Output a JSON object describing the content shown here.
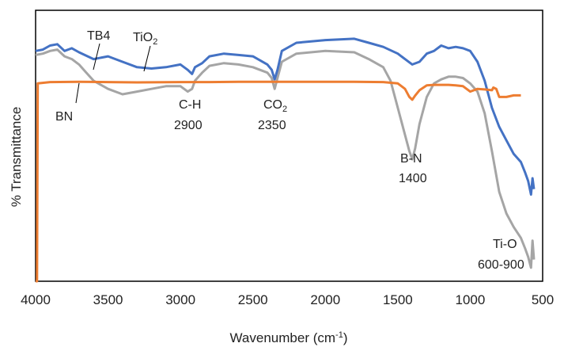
{
  "chart_data": {
    "type": "line",
    "title": "",
    "xlabel": "Wavenumber (cm",
    "xlabel_sup": "-1",
    "xlabel_close": ")",
    "ylabel": "% Transmittance",
    "xlim": [
      4000,
      500
    ],
    "ylim": [
      0,
      100
    ],
    "x_reversed": true,
    "grid": false,
    "legend": "none",
    "xticks": [
      {
        "value": 4000,
        "label": "4000"
      },
      {
        "value": 3500,
        "label": "3500"
      },
      {
        "value": 3000,
        "label": "3000"
      },
      {
        "value": 2500,
        "label": "2500"
      },
      {
        "value": 2000,
        "label": "2000"
      },
      {
        "value": 1500,
        "label": "1500"
      },
      {
        "value": 1000,
        "label": "1000"
      },
      {
        "value": 500,
        "label": "500"
      }
    ],
    "series": [
      {
        "name": "BN",
        "color": "#ED7D31",
        "x": [
          4000,
          3990,
          3985,
          3900,
          3700,
          3500,
          3300,
          3000,
          2800,
          2600,
          2400,
          2200,
          2000,
          1800,
          1600,
          1500,
          1450,
          1420,
          1400,
          1380,
          1350,
          1300,
          1250,
          1200,
          1150,
          1100,
          1050,
          1000,
          950,
          900,
          850,
          840,
          820,
          800,
          750,
          700,
          650
        ],
        "y": [
          0,
          0,
          73,
          73.5,
          73.6,
          73.5,
          73.4,
          73.5,
          73.5,
          73.6,
          73.6,
          73.6,
          73.6,
          73.6,
          73.5,
          73,
          71,
          68,
          67,
          68.5,
          70.5,
          72.3,
          72.5,
          72.5,
          72.5,
          72.3,
          72,
          70,
          71,
          70.8,
          70.5,
          71.5,
          71,
          68,
          68,
          68.6,
          68.6
        ]
      },
      {
        "name": "TiO2",
        "color": "#4472C4",
        "x": [
          4000,
          3950,
          3900,
          3850,
          3800,
          3750,
          3700,
          3600,
          3500,
          3400,
          3300,
          3200,
          3100,
          3000,
          2950,
          2920,
          2900,
          2850,
          2800,
          2700,
          2600,
          2500,
          2400,
          2370,
          2350,
          2330,
          2300,
          2200,
          2000,
          1800,
          1700,
          1600,
          1500,
          1450,
          1400,
          1350,
          1300,
          1250,
          1200,
          1150,
          1100,
          1050,
          1000,
          950,
          900,
          850,
          800,
          750,
          700,
          650,
          620,
          600,
          580,
          570,
          560
        ],
        "y": [
          85,
          85.5,
          87,
          87.5,
          85,
          86,
          84.5,
          82,
          83,
          81,
          79,
          78.5,
          79,
          80,
          78,
          76.5,
          79,
          80.5,
          83,
          84,
          83.5,
          83,
          80,
          78,
          74.5,
          78,
          85,
          88,
          89,
          89.5,
          88,
          86.5,
          84,
          82,
          80,
          81,
          84,
          85,
          87,
          86,
          86.5,
          86,
          85,
          81,
          74,
          64,
          57,
          52,
          47,
          44,
          40,
          37,
          32,
          38,
          34
        ]
      },
      {
        "name": "TB4",
        "color": "#A5A5A5",
        "x": [
          4000,
          3950,
          3900,
          3850,
          3800,
          3750,
          3700,
          3650,
          3600,
          3500,
          3400,
          3300,
          3200,
          3100,
          3000,
          2950,
          2920,
          2900,
          2850,
          2800,
          2700,
          2600,
          2500,
          2400,
          2370,
          2350,
          2330,
          2300,
          2200,
          2000,
          1800,
          1700,
          1600,
          1550,
          1500,
          1450,
          1420,
          1400,
          1380,
          1350,
          1300,
          1250,
          1200,
          1150,
          1100,
          1050,
          1000,
          950,
          900,
          850,
          800,
          750,
          700,
          650,
          620,
          600,
          580,
          570,
          560
        ],
        "y": [
          83.5,
          84,
          85,
          85.5,
          83,
          82,
          80,
          77,
          74,
          71,
          69,
          70,
          71,
          72,
          72,
          70,
          71,
          74,
          77,
          79.5,
          80.5,
          80,
          79,
          77,
          75,
          71,
          75,
          81,
          84,
          85,
          84.5,
          82,
          79,
          74,
          64,
          54,
          48,
          45,
          49,
          58,
          68,
          73,
          74.5,
          75.5,
          75.5,
          75,
          73,
          70,
          62,
          48,
          33,
          25,
          20,
          16,
          12,
          9,
          5,
          15,
          8
        ]
      }
    ],
    "annotations": [
      {
        "text": "TB4"
      },
      {
        "text": "TiO",
        "sub": "2"
      },
      {
        "text": "BN"
      },
      {
        "text": "C-H"
      },
      {
        "text": "2900"
      },
      {
        "text": "CO",
        "sub": "2"
      },
      {
        "text": "2350"
      },
      {
        "text": "B-N"
      },
      {
        "text": "1400"
      },
      {
        "text": "Ti-O"
      },
      {
        "text": "600-900"
      }
    ]
  }
}
